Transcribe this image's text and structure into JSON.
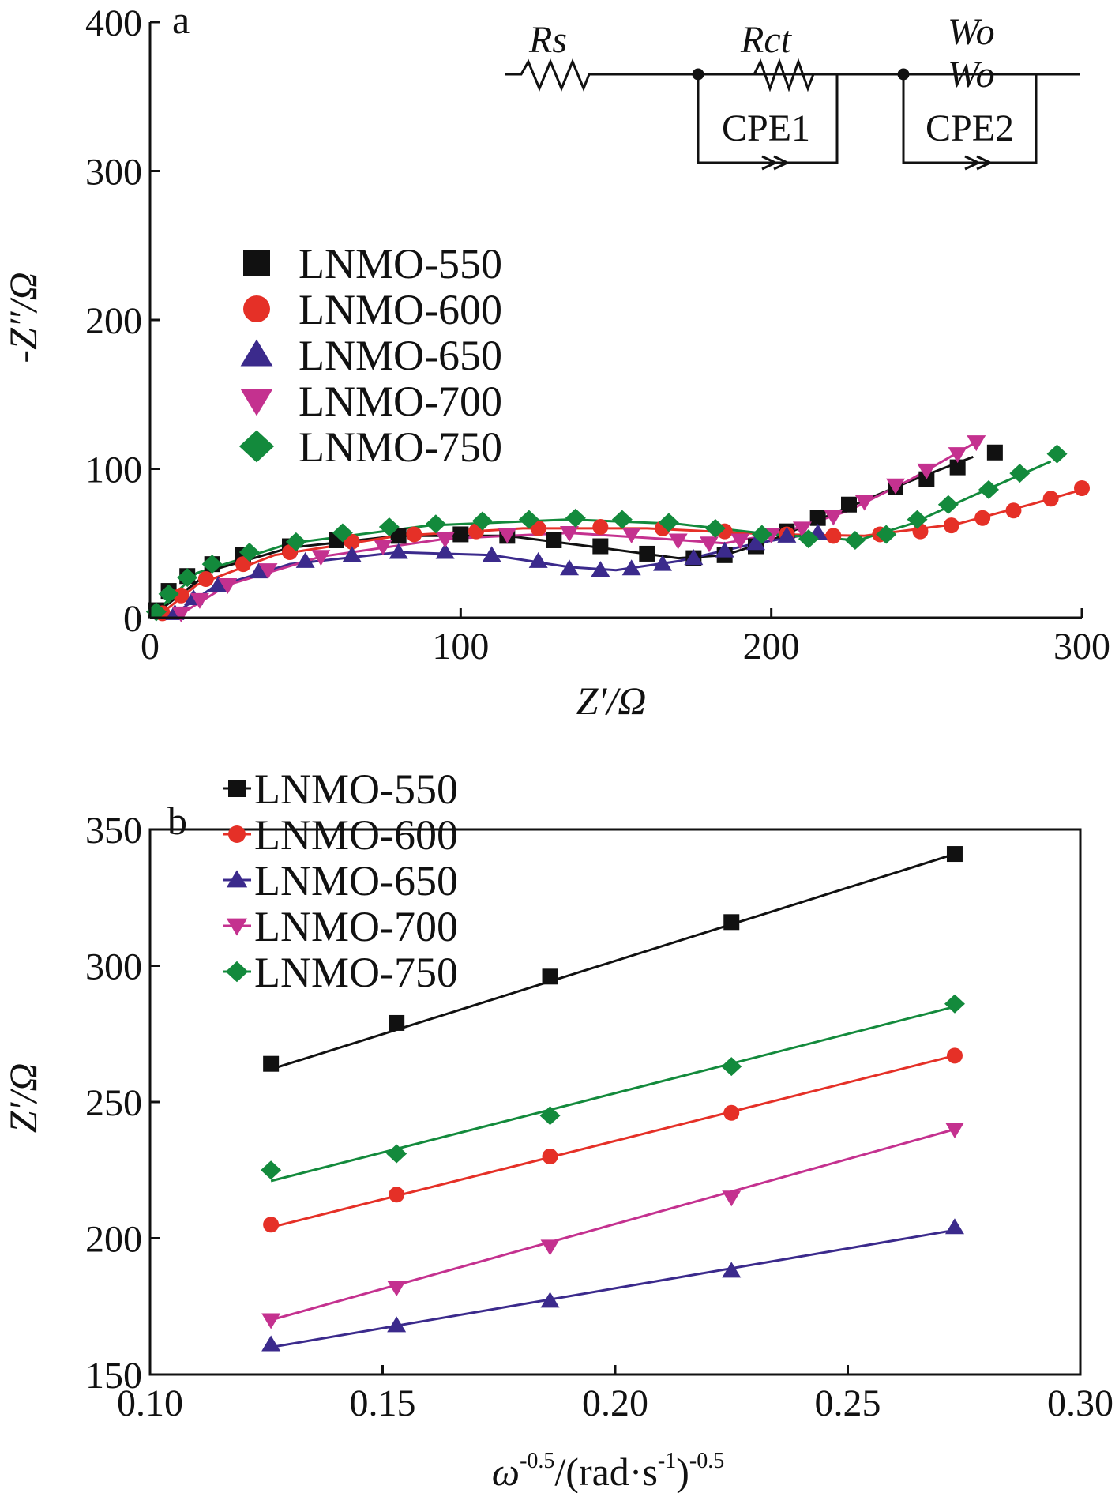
{
  "chart_data": [
    {
      "type": "scatter",
      "panel_label": "a",
      "xlabel": "Z′/Ω",
      "ylabel": "-Z″/Ω",
      "xlim": [
        0,
        300
      ],
      "ylim": [
        0,
        400
      ],
      "x_ticks": [
        "0",
        "100",
        "200",
        "300"
      ],
      "y_ticks": [
        "0",
        "100",
        "200",
        "300",
        "400"
      ],
      "legend_position": "middle-left",
      "equivalent_circuit": {
        "labels": [
          "Rs",
          "Rct",
          "Wo",
          "Wo",
          "CPE1",
          "CPE2"
        ]
      },
      "series": [
        {
          "name": "LNMO-550",
          "color": "#111111",
          "marker": "square",
          "points": [
            [
              2,
              5
            ],
            [
              6,
              18
            ],
            [
              12,
              28
            ],
            [
              20,
              36
            ],
            [
              30,
              42
            ],
            [
              45,
              48
            ],
            [
              60,
              52
            ],
            [
              80,
              55
            ],
            [
              100,
              56
            ],
            [
              115,
              55
            ],
            [
              130,
              52
            ],
            [
              145,
              48
            ],
            [
              160,
              43
            ],
            [
              175,
              40
            ],
            [
              185,
              42
            ],
            [
              195,
              48
            ],
            [
              205,
              58
            ],
            [
              215,
              67
            ],
            [
              225,
              76
            ],
            [
              240,
              88
            ],
            [
              250,
              93
            ],
            [
              260,
              101
            ],
            [
              272,
              111
            ]
          ],
          "fit": [
            [
              0,
              0
            ],
            [
              20,
              32
            ],
            [
              45,
              47
            ],
            [
              80,
              55
            ],
            [
              115,
              55
            ],
            [
              145,
              47
            ],
            [
              170,
              40
            ],
            [
              185,
              42
            ],
            [
              200,
              52
            ],
            [
              220,
              70
            ],
            [
              245,
              92
            ],
            [
              265,
              108
            ]
          ]
        },
        {
          "name": "LNMO-600",
          "color": "#e53027",
          "marker": "circle",
          "points": [
            [
              4,
              3
            ],
            [
              10,
              15
            ],
            [
              18,
              26
            ],
            [
              30,
              36
            ],
            [
              45,
              44
            ],
            [
              65,
              51
            ],
            [
              85,
              56
            ],
            [
              105,
              58
            ],
            [
              125,
              60
            ],
            [
              145,
              61
            ],
            [
              165,
              60
            ],
            [
              185,
              58
            ],
            [
              205,
              56
            ],
            [
              220,
              55
            ],
            [
              235,
              56
            ],
            [
              248,
              58
            ],
            [
              258,
              62
            ],
            [
              268,
              67
            ],
            [
              278,
              72
            ],
            [
              290,
              80
            ],
            [
              300,
              87
            ]
          ],
          "fit": [
            [
              2,
              0
            ],
            [
              15,
              22
            ],
            [
              40,
              42
            ],
            [
              80,
              55
            ],
            [
              120,
              60
            ],
            [
              160,
              60
            ],
            [
              200,
              56
            ],
            [
              230,
              55
            ],
            [
              260,
              63
            ],
            [
              285,
              77
            ],
            [
              300,
              86
            ]
          ]
        },
        {
          "name": "LNMO-650",
          "color": "#3b2a8c",
          "marker": "triangle-up",
          "points": [
            [
              8,
              3
            ],
            [
              14,
              13
            ],
            [
              22,
              22
            ],
            [
              35,
              31
            ],
            [
              50,
              38
            ],
            [
              65,
              42
            ],
            [
              80,
              44
            ],
            [
              95,
              44
            ],
            [
              110,
              42
            ],
            [
              125,
              38
            ],
            [
              135,
              33
            ],
            [
              145,
              32
            ],
            [
              155,
              33
            ],
            [
              165,
              36
            ],
            [
              175,
              40
            ],
            [
              185,
              45
            ],
            [
              195,
              50
            ],
            [
              205,
              55
            ],
            [
              215,
              57
            ]
          ],
          "fit": [
            [
              6,
              0
            ],
            [
              20,
              20
            ],
            [
              45,
              36
            ],
            [
              80,
              44
            ],
            [
              110,
              42
            ],
            [
              135,
              34
            ],
            [
              150,
              32
            ],
            [
              170,
              38
            ],
            [
              195,
              50
            ],
            [
              215,
              57
            ]
          ]
        },
        {
          "name": "LNMO-700",
          "color": "#c4318f",
          "marker": "triangle-down",
          "points": [
            [
              10,
              3
            ],
            [
              16,
              12
            ],
            [
              25,
              22
            ],
            [
              38,
              32
            ],
            [
              55,
              41
            ],
            [
              75,
              48
            ],
            [
              95,
              53
            ],
            [
              115,
              56
            ],
            [
              135,
              57
            ],
            [
              155,
              56
            ],
            [
              170,
              52
            ],
            [
              180,
              50
            ],
            [
              190,
              52
            ],
            [
              200,
              56
            ],
            [
              210,
              60
            ],
            [
              220,
              68
            ],
            [
              230,
              78
            ],
            [
              240,
              89
            ],
            [
              250,
              99
            ],
            [
              260,
              110
            ],
            [
              266,
              118
            ]
          ],
          "fit": [
            [
              8,
              0
            ],
            [
              25,
              22
            ],
            [
              55,
              41
            ],
            [
              95,
              53
            ],
            [
              135,
              57
            ],
            [
              165,
              53
            ],
            [
              185,
              50
            ],
            [
              205,
              58
            ],
            [
              225,
              72
            ],
            [
              245,
              93
            ],
            [
              266,
              118
            ]
          ]
        },
        {
          "name": "LNMO-750",
          "color": "#138a3c",
          "marker": "diamond",
          "points": [
            [
              2,
              4
            ],
            [
              6,
              16
            ],
            [
              12,
              27
            ],
            [
              20,
              36
            ],
            [
              32,
              44
            ],
            [
              47,
              51
            ],
            [
              62,
              57
            ],
            [
              77,
              61
            ],
            [
              92,
              63
            ],
            [
              107,
              65
            ],
            [
              122,
              66
            ],
            [
              137,
              67
            ],
            [
              152,
              66
            ],
            [
              167,
              64
            ],
            [
              182,
              60
            ],
            [
              197,
              56
            ],
            [
              212,
              53
            ],
            [
              227,
              52
            ],
            [
              237,
              56
            ],
            [
              247,
              66
            ],
            [
              257,
              76
            ],
            [
              270,
              86
            ],
            [
              280,
              97
            ],
            [
              292,
              110
            ]
          ],
          "fit": [
            [
              0,
              0
            ],
            [
              15,
              30
            ],
            [
              45,
              50
            ],
            [
              90,
              62
            ],
            [
              135,
              66
            ],
            [
              170,
              63
            ],
            [
              200,
              56
            ],
            [
              228,
              52
            ],
            [
              245,
              63
            ],
            [
              265,
              82
            ],
            [
              290,
              105
            ]
          ]
        }
      ]
    },
    {
      "type": "scatter",
      "panel_label": "b",
      "xlabel": "ω-0.5/(rad·s-1)-0.5",
      "xlabel_parts": {
        "omega": "ω",
        "exp1": "-0.5",
        "mid": "/(rad·s",
        "exp2": "-1",
        "close": ")",
        "exp3": "-0.5"
      },
      "ylabel": "Z′/Ω",
      "xlim": [
        0.1,
        0.3
      ],
      "ylim": [
        150,
        350
      ],
      "x_ticks": [
        "0.10",
        "0.15",
        "0.20",
        "0.25",
        "0.30"
      ],
      "y_ticks": [
        "150",
        "200",
        "250",
        "300",
        "350"
      ],
      "legend_position": "top-left",
      "series": [
        {
          "name": "LNMO-550",
          "color": "#111111",
          "marker": "square",
          "x": [
            0.126,
            0.153,
            0.186,
            0.225,
            0.273
          ],
          "y": [
            264,
            279,
            296,
            316,
            341
          ],
          "fit": [
            [
              0.126,
              262
            ],
            [
              0.273,
              341
            ]
          ]
        },
        {
          "name": "LNMO-600",
          "color": "#e53027",
          "marker": "circle",
          "x": [
            0.126,
            0.153,
            0.186,
            0.225,
            0.273
          ],
          "y": [
            205,
            216,
            230,
            246,
            267
          ],
          "fit": [
            [
              0.126,
              204
            ],
            [
              0.273,
              267
            ]
          ]
        },
        {
          "name": "LNMO-650",
          "color": "#3b2a8c",
          "marker": "triangle-up",
          "x": [
            0.126,
            0.153,
            0.186,
            0.225,
            0.273
          ],
          "y": [
            161,
            168,
            177,
            188,
            204
          ],
          "fit": [
            [
              0.126,
              160
            ],
            [
              0.273,
              203
            ]
          ]
        },
        {
          "name": "LNMO-700",
          "color": "#c4318f",
          "marker": "triangle-down",
          "x": [
            0.126,
            0.153,
            0.186,
            0.225,
            0.273
          ],
          "y": [
            170,
            182,
            197,
            215,
            240
          ],
          "fit": [
            [
              0.126,
              170
            ],
            [
              0.273,
              240
            ]
          ]
        },
        {
          "name": "LNMO-750",
          "color": "#138a3c",
          "marker": "diamond",
          "x": [
            0.126,
            0.153,
            0.186,
            0.225,
            0.273
          ],
          "y": [
            225,
            231,
            245,
            263,
            286
          ],
          "fit": [
            [
              0.126,
              221
            ],
            [
              0.273,
              285
            ]
          ]
        }
      ]
    }
  ]
}
